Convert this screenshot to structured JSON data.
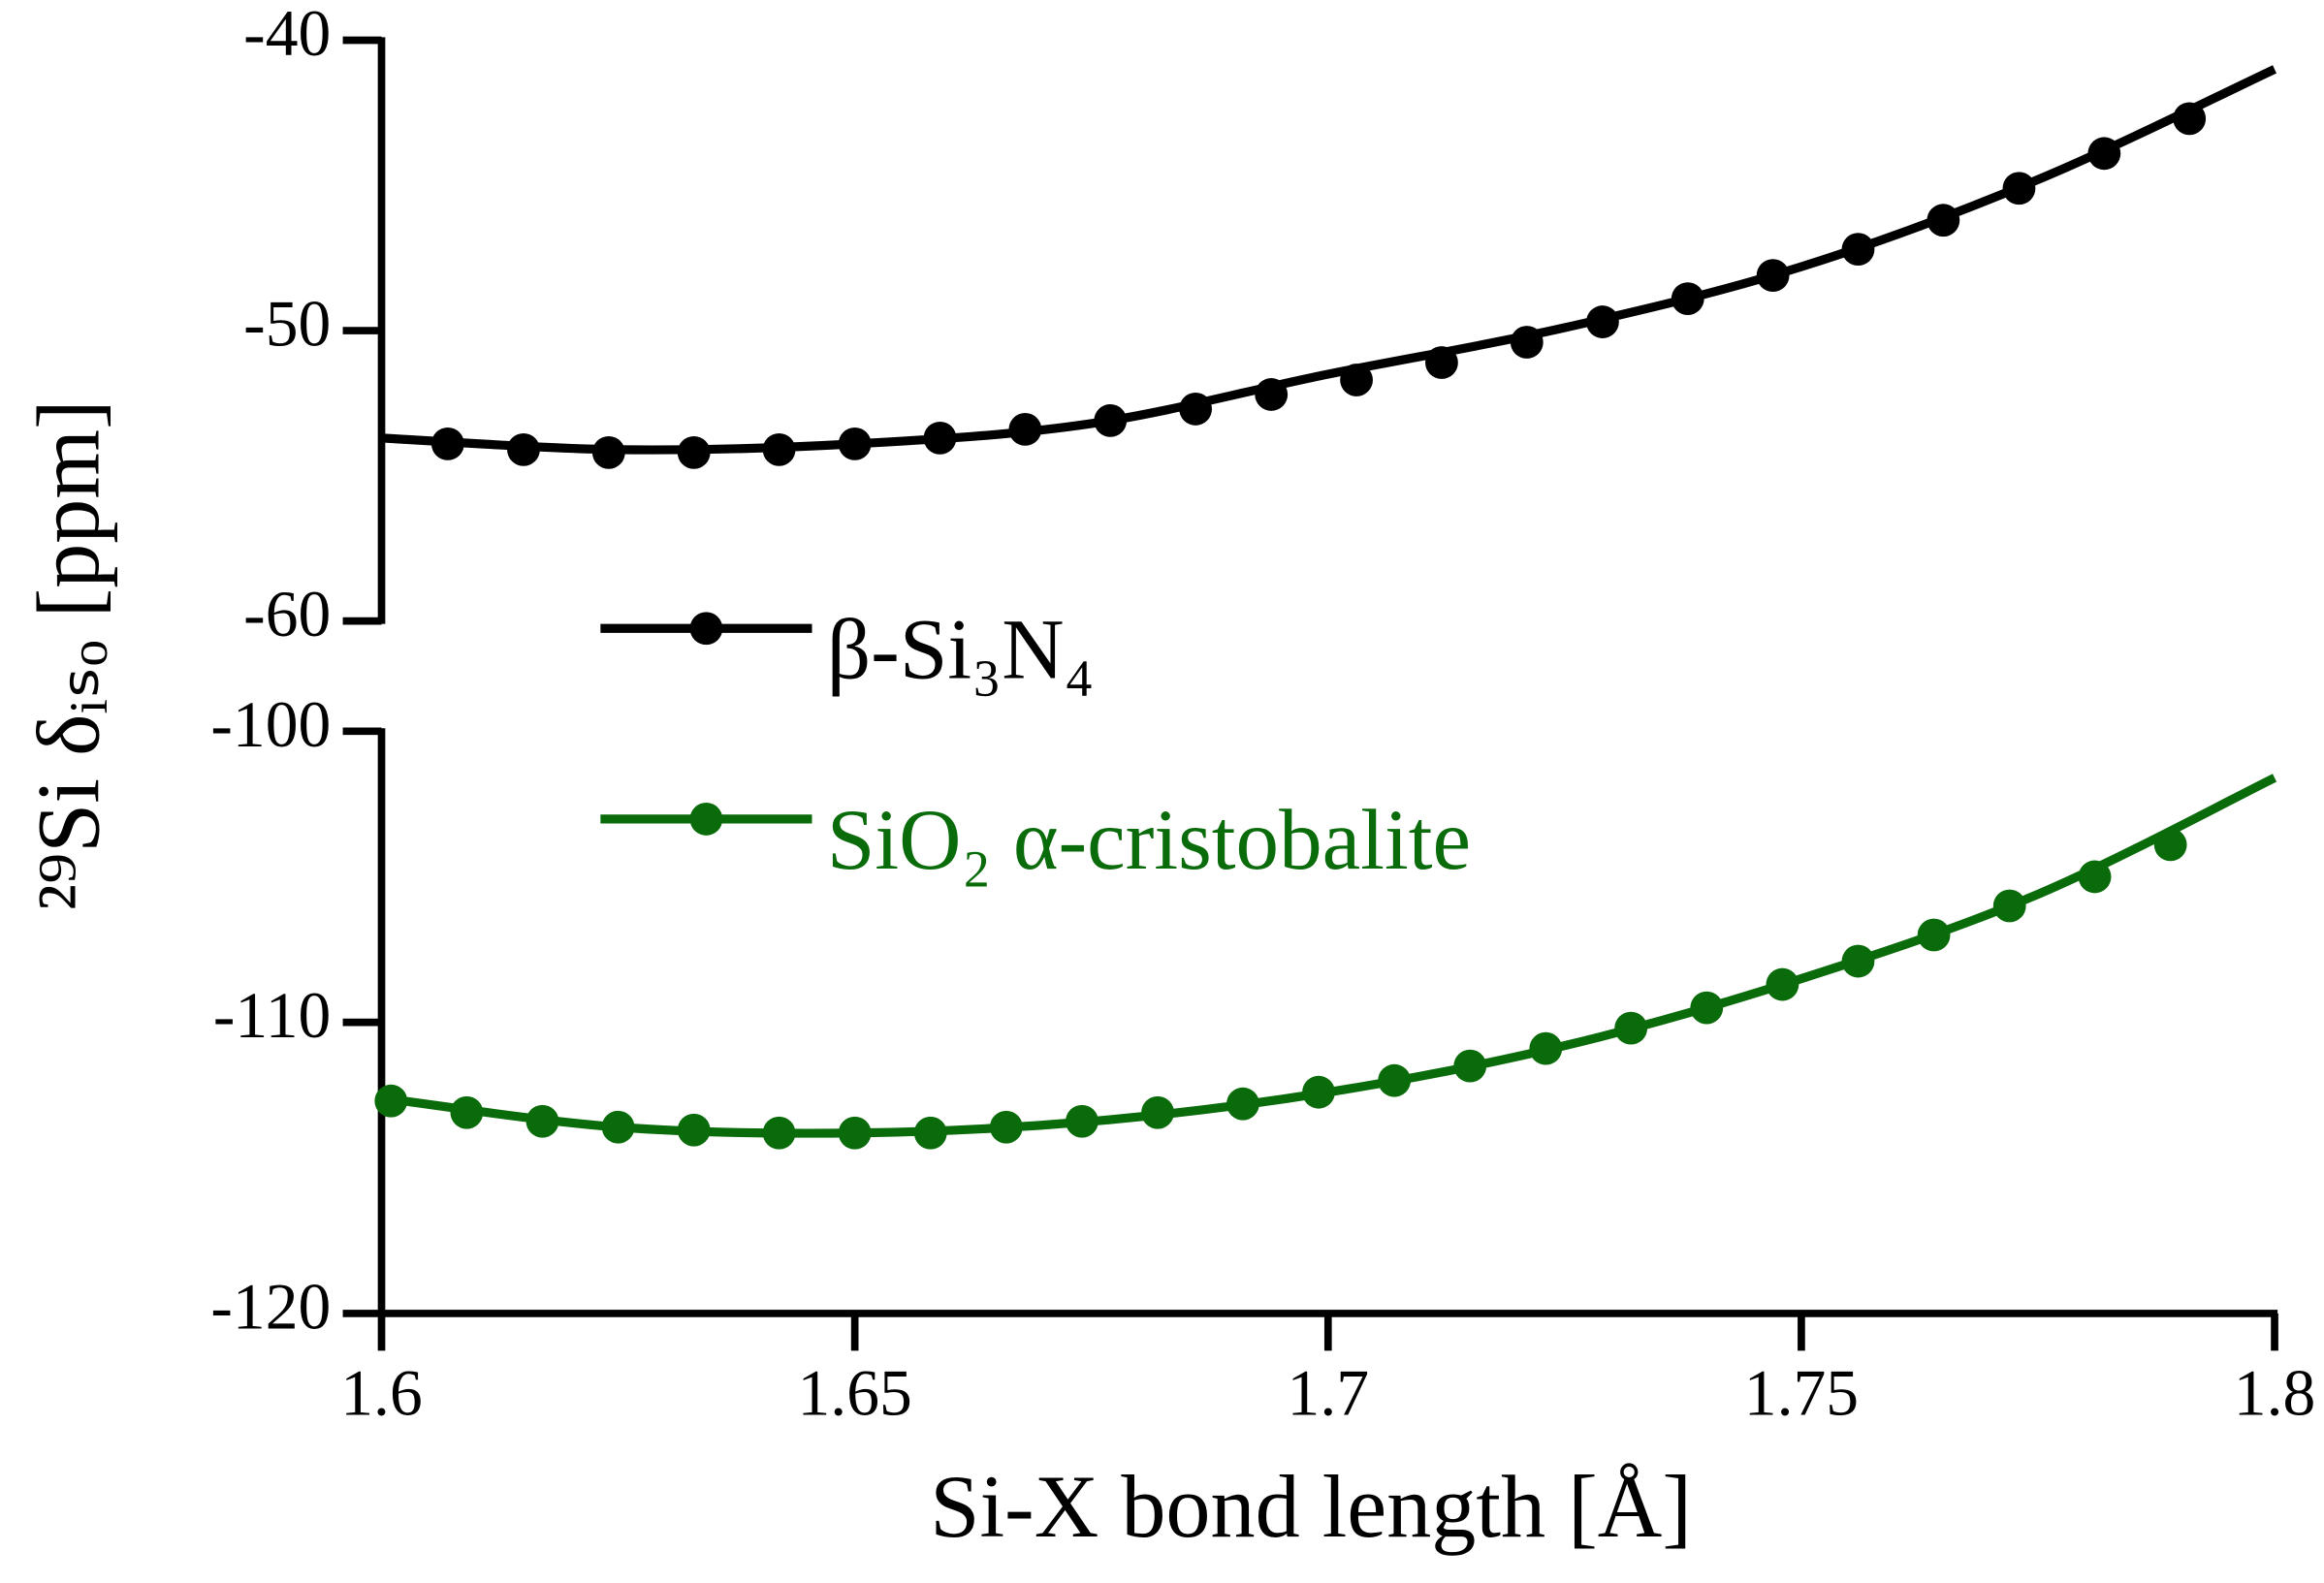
{
  "chart_data": {
    "type": "line",
    "x_label": "Si-X bond length [Å]",
    "y_label": "²⁹Si δᵢₛₒ [ppm]",
    "xlim": [
      1.6,
      1.8
    ],
    "xticks": [
      1.6,
      1.65,
      1.7,
      1.75,
      1.8
    ],
    "ylim": [
      -120,
      -100
    ],
    "yticks": [
      -120,
      -110,
      -100
    ],
    "y2lim": [
      -60,
      -40
    ],
    "y2ticks": [
      -60,
      -50,
      -40
    ],
    "series": [
      {
        "name": "β-Si₃N₄",
        "color": "#000000",
        "axis": "y2",
        "x": [
          1.607,
          1.615,
          1.624,
          1.633,
          1.642,
          1.65,
          1.659,
          1.668,
          1.677,
          1.686,
          1.694,
          1.703,
          1.712,
          1.721,
          1.729,
          1.738,
          1.747,
          1.756,
          1.765,
          1.773,
          1.782,
          1.791
        ],
        "values": [
          -53.9,
          -54.1,
          -54.2,
          -54.2,
          -54.1,
          -53.9,
          -53.7,
          -53.4,
          -53.1,
          -52.7,
          -52.2,
          -51.7,
          -51.1,
          -50.4,
          -49.7,
          -48.9,
          -48.1,
          -47.2,
          -46.2,
          -45.1,
          -43.9,
          -42.7
        ],
        "fit_x": [
          1.6,
          1.625,
          1.65,
          1.675,
          1.7,
          1.725,
          1.75,
          1.775,
          1.8
        ],
        "fit_values": [
          -53.7,
          -54.1,
          -53.9,
          -53.2,
          -51.5,
          -49.9,
          -47.8,
          -44.8,
          -41.0
        ]
      },
      {
        "name": "SiO₂ α-cristobalite",
        "color": "#0a6b0a",
        "x": [
          1.601,
          1.609,
          1.617,
          1.625,
          1.633,
          1.642,
          1.65,
          1.658,
          1.666,
          1.674,
          1.682,
          1.691,
          1.699,
          1.707,
          1.715,
          1.723,
          1.732,
          1.74,
          1.748,
          1.756,
          1.764,
          1.772,
          1.781,
          1.789
        ],
        "values": [
          -112.7,
          -113.1,
          -113.4,
          -113.6,
          -113.7,
          -113.8,
          -113.8,
          -113.8,
          -113.6,
          -113.4,
          -113.1,
          -112.8,
          -112.4,
          -112.0,
          -111.5,
          -110.9,
          -110.2,
          -109.5,
          -108.7,
          -107.9,
          -107.0,
          -106.0,
          -105.0,
          -103.9
        ],
        "fit_x": [
          1.6,
          1.625,
          1.65,
          1.675,
          1.7,
          1.725,
          1.75,
          1.775,
          1.8
        ],
        "fit_values": [
          -112.6,
          -113.6,
          -113.8,
          -113.4,
          -112.4,
          -110.8,
          -108.5,
          -105.6,
          -101.6
        ]
      }
    ]
  }
}
